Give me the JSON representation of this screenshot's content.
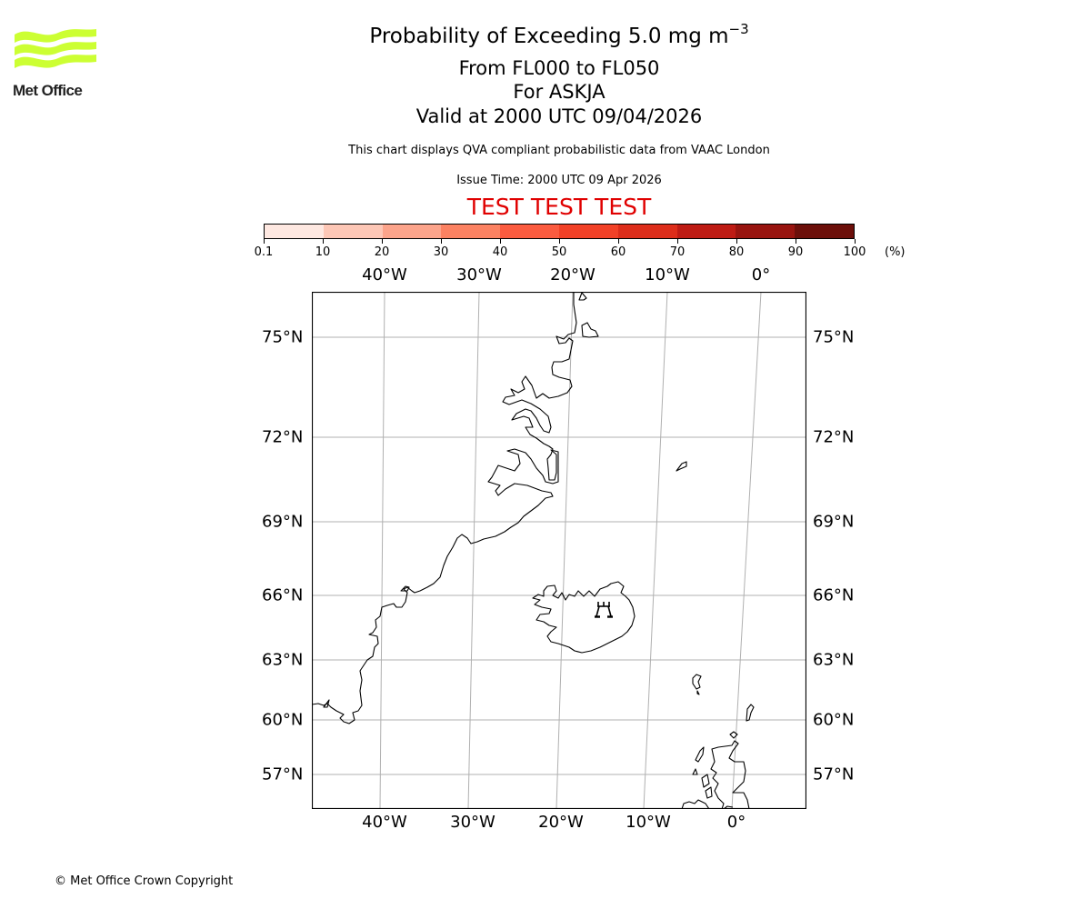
{
  "logo": {
    "text": "Met Office",
    "color": "#ccff33"
  },
  "header": {
    "title_main": "Probability of Exceeding 5.0 mg m",
    "title_sup": "−3",
    "level_range": "From FL000 to FL050",
    "volcano": "For ASKJA",
    "valid_time": "Valid at 2000 UTC 09/04/2026",
    "description": "This chart displays QVA compliant probabilistic data from VAAC London",
    "issue_time": "Issue Time: 2000 UTC 09 Apr 2026",
    "test_banner": "TEST TEST TEST",
    "test_banner_color": "#e00000"
  },
  "colorbar": {
    "unit": "(%)",
    "ticks": [
      "0.1",
      "10",
      "20",
      "30",
      "40",
      "50",
      "60",
      "70",
      "80",
      "90",
      "100"
    ],
    "colors": [
      "#fee8e1",
      "#fdc7b6",
      "#fca48b",
      "#fc8262",
      "#fb5b3f",
      "#f24127",
      "#dd2d1a",
      "#be1b14",
      "#98140f",
      "#6c0f0a"
    ]
  },
  "map": {
    "lon_labels_top": [
      "40°W",
      "30°W",
      "20°W",
      "10°W",
      "0°"
    ],
    "lon_labels_bottom": [
      "40°W",
      "30°W",
      "20°W",
      "10°W",
      "0°"
    ],
    "lat_labels_left": [
      "75°N",
      "72°N",
      "69°N",
      "66°N",
      "63°N",
      "60°N",
      "57°N"
    ],
    "lat_labels_right": [
      "75°N",
      "72°N",
      "69°N",
      "66°N",
      "63°N",
      "60°N",
      "57°N"
    ],
    "volcano_marker": {
      "name": "ASKJA",
      "icon": "volcano-icon"
    },
    "gridline_color": "#b0b0b0"
  },
  "footer": {
    "copyright": "© Met Office Crown Copyright"
  }
}
